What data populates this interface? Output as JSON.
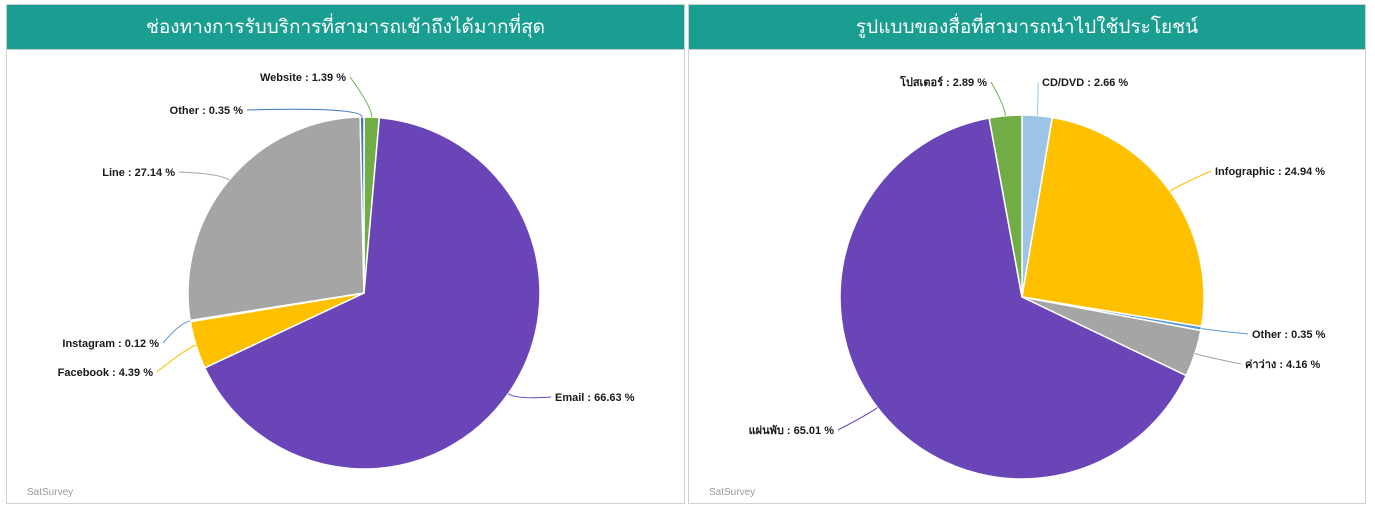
{
  "header_color": "#1a9e92",
  "watermark": "SatSurvey",
  "chart_data": [
    {
      "type": "pie",
      "title": "ช่องทางการรับบริการที่สามารถเข้าถึงได้มากที่สุด",
      "slices": [
        {
          "label": "Website",
          "value": 1.39,
          "color": "#70ad47"
        },
        {
          "label": "Email",
          "value": 66.63,
          "color": "#6a45b8"
        },
        {
          "label": "Facebook",
          "value": 4.39,
          "color": "#ffc000"
        },
        {
          "label": "Instagram",
          "value": 0.12,
          "color": "#5b9bd5"
        },
        {
          "label": "Line",
          "value": 27.14,
          "color": "#a5a5a5"
        },
        {
          "label": "Other",
          "value": 0.35,
          "color": "#4472c4"
        }
      ]
    },
    {
      "type": "pie",
      "title": "รูปแบบของสื่อที่สามารถนำไปใช้ประโยชน์",
      "slices": [
        {
          "label": "CD/DVD",
          "value": 2.66,
          "color": "#9dc3e6"
        },
        {
          "label": "Infographic",
          "value": 24.94,
          "color": "#ffc000"
        },
        {
          "label": "Other",
          "value": 0.35,
          "color": "#5b9bd5"
        },
        {
          "label": "ค่าว่าง",
          "value": 4.16,
          "color": "#a5a5a5"
        },
        {
          "label": "แผ่นพับ",
          "value": 65.01,
          "color": "#6a45b8"
        },
        {
          "label": "โปสเตอร์",
          "value": 2.89,
          "color": "#70ad47"
        }
      ]
    }
  ]
}
